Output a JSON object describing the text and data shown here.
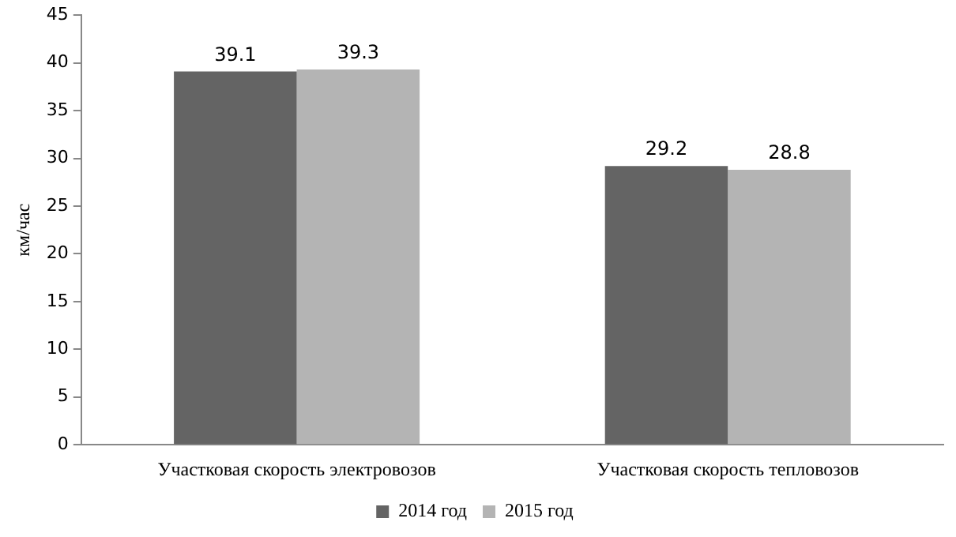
{
  "chart_data": {
    "type": "bar",
    "ylabel": "км/час",
    "categories": [
      "Участковая скорость электровозов",
      "Участковая скорость тепловозов"
    ],
    "series": [
      {
        "name": "2014 год",
        "color": "#646464",
        "values": [
          39.1,
          29.2
        ]
      },
      {
        "name": "2015 год",
        "color": "#b4b4b4",
        "values": [
          39.3,
          28.8
        ]
      }
    ],
    "ylim": [
      0,
      45
    ],
    "yticks": [
      0,
      5,
      10,
      15,
      20,
      25,
      30,
      35,
      40,
      45
    ],
    "grid": false,
    "legend": "bottom",
    "data_labels": true
  }
}
